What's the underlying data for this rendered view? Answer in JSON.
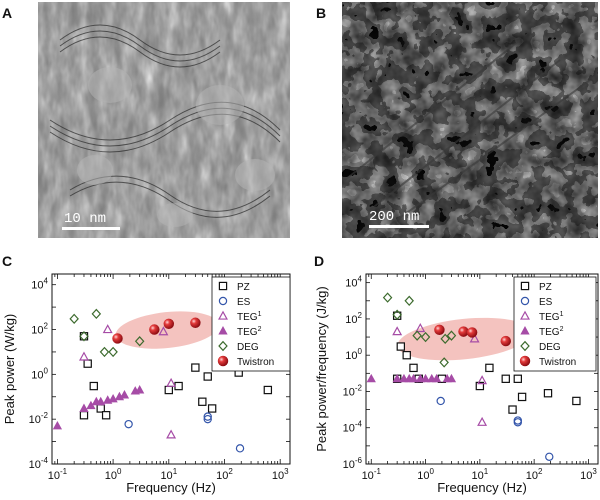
{
  "panels": {
    "a": {
      "letter": "A",
      "scalebar": "10 nm"
    },
    "b": {
      "letter": "B",
      "scalebar": "200 nm"
    },
    "c": {
      "letter": "C"
    },
    "d": {
      "letter": "D"
    }
  },
  "colors": {
    "PZ": "#111111",
    "ES": "#3355aa",
    "TEG1": "#a64ca6",
    "TEG2": "#a64ca6",
    "DEG": "#3d6b2e",
    "Twistron": "#d41f2a",
    "ellipse": "#f2b8b4"
  },
  "legend": [
    {
      "key": "PZ",
      "marker": "open-square",
      "label": "PZ",
      "sup": ""
    },
    {
      "key": "ES",
      "marker": "open-circle",
      "label": "ES",
      "sup": ""
    },
    {
      "key": "TEG1",
      "marker": "open-triangle",
      "label": "TEG",
      "sup": "1"
    },
    {
      "key": "TEG2",
      "marker": "filled-triangle",
      "label": "TEG",
      "sup": "2"
    },
    {
      "key": "DEG",
      "marker": "open-diamond",
      "label": "DEG",
      "sup": ""
    },
    {
      "key": "Twistron",
      "marker": "red-sphere",
      "label": "Twistron",
      "sup": ""
    }
  ],
  "chart_data": [
    {
      "panel": "C",
      "type": "scatter",
      "xlabel": "Frequency (Hz)",
      "ylabel": "Peak power (W/kg)",
      "x_scale": "log",
      "y_scale": "log",
      "xlim": [
        0.08,
        1500
      ],
      "ylim": [
        0.0001,
        30000
      ],
      "x_ticks": [
        {
          "v": 0.1,
          "base": "10",
          "exp": "-1"
        },
        {
          "v": 1,
          "base": "10",
          "exp": "0"
        },
        {
          "v": 10,
          "base": "10",
          "exp": "1"
        },
        {
          "v": 100,
          "base": "10",
          "exp": "2"
        },
        {
          "v": 1000,
          "base": "10",
          "exp": "3"
        }
      ],
      "y_ticks": [
        {
          "v": 0.0001,
          "base": "10",
          "exp": "-4"
        },
        {
          "v": 0.01,
          "base": "10",
          "exp": "-2"
        },
        {
          "v": 1,
          "base": "10",
          "exp": "0"
        },
        {
          "v": 100,
          "base": "10",
          "exp": "2"
        },
        {
          "v": 10000,
          "base": "10",
          "exp": "4"
        }
      ],
      "highlight_region": {
        "x_center": 6,
        "y_center": 100,
        "x_span": [
          1.1,
          80
        ],
        "y_span": [
          15,
          600
        ]
      },
      "series": [
        {
          "key": "PZ",
          "points": [
            [
              0.3,
              50
            ],
            [
              0.35,
              3
            ],
            [
              0.45,
              0.3
            ],
            [
              0.6,
              0.03
            ],
            [
              0.75,
              0.015
            ],
            [
              0.3,
              0.015
            ],
            [
              10,
              0.2
            ],
            [
              15,
              0.3
            ],
            [
              30,
              2
            ],
            [
              50,
              0.8
            ],
            [
              60,
              0.03
            ],
            [
              180,
              1.2
            ],
            [
              600,
              0.2
            ],
            [
              40,
              0.06
            ]
          ]
        },
        {
          "key": "ES",
          "points": [
            [
              1.9,
              0.006
            ],
            [
              50,
              0.01
            ],
            [
              50,
              0.013
            ],
            [
              190,
              0.0005
            ]
          ]
        },
        {
          "key": "TEG1",
          "points": [
            [
              0.3,
              6
            ],
            [
              0.8,
              100
            ],
            [
              8,
              80
            ],
            [
              11,
              0.4
            ],
            [
              11,
              0.002
            ]
          ]
        },
        {
          "key": "TEG2",
          "points": [
            [
              0.1,
              0.005
            ],
            [
              0.3,
              0.03
            ],
            [
              0.4,
              0.04
            ],
            [
              0.5,
              0.06
            ],
            [
              0.6,
              0.06
            ],
            [
              0.8,
              0.07
            ],
            [
              1,
              0.08
            ],
            [
              1.3,
              0.1
            ],
            [
              1.6,
              0.12
            ],
            [
              2.5,
              0.18
            ],
            [
              3,
              0.2
            ]
          ]
        },
        {
          "key": "DEG",
          "points": [
            [
              0.2,
              300
            ],
            [
              0.3,
              50
            ],
            [
              0.5,
              500
            ],
            [
              0.7,
              10
            ],
            [
              1,
              10
            ],
            [
              3,
              30
            ]
          ]
        },
        {
          "key": "Twistron",
          "points": [
            [
              1.2,
              40
            ],
            [
              5.5,
              100
            ],
            [
              10,
              180
            ],
            [
              30,
              200
            ]
          ]
        }
      ]
    },
    {
      "panel": "D",
      "type": "scatter",
      "xlabel": "Frequency (Hz)",
      "ylabel": "Peak power/frequency (J/kg)",
      "x_scale": "log",
      "y_scale": "log",
      "xlim": [
        0.08,
        1500
      ],
      "ylim": [
        1e-06,
        30000
      ],
      "x_ticks": [
        {
          "v": 0.1,
          "base": "10",
          "exp": "-1"
        },
        {
          "v": 1,
          "base": "10",
          "exp": "0"
        },
        {
          "v": 10,
          "base": "10",
          "exp": "1"
        },
        {
          "v": 100,
          "base": "10",
          "exp": "2"
        },
        {
          "v": 1000,
          "base": "10",
          "exp": "3"
        }
      ],
      "y_ticks": [
        {
          "v": 1e-06,
          "base": "10",
          "exp": "-6"
        },
        {
          "v": 0.0001,
          "base": "10",
          "exp": "-4"
        },
        {
          "v": 0.01,
          "base": "10",
          "exp": "-2"
        },
        {
          "v": 1,
          "base": "10",
          "exp": "0"
        },
        {
          "v": 100,
          "base": "10",
          "exp": "2"
        },
        {
          "v": 10000,
          "base": "10",
          "exp": "4"
        }
      ],
      "highlight_region": {
        "x_center": 5,
        "y_center": 8,
        "x_span": [
          0.3,
          90
        ],
        "y_span": [
          0.6,
          100
        ]
      },
      "series": [
        {
          "key": "PZ",
          "points": [
            [
              0.3,
              150
            ],
            [
              0.35,
              3
            ],
            [
              0.45,
              1
            ],
            [
              0.6,
              0.2
            ],
            [
              0.75,
              0.05
            ],
            [
              0.3,
              0.05
            ],
            [
              2,
              0.05
            ],
            [
              10,
              0.02
            ],
            [
              15,
              0.2
            ],
            [
              30,
              0.05
            ],
            [
              50,
              0.05
            ],
            [
              60,
              0.005
            ],
            [
              180,
              0.008
            ],
            [
              600,
              0.003
            ],
            [
              40,
              0.001
            ]
          ]
        },
        {
          "key": "ES",
          "points": [
            [
              1.9,
              0.003
            ],
            [
              50,
              0.0002
            ],
            [
              50,
              0.00025
            ],
            [
              190,
              2.5e-06
            ]
          ]
        },
        {
          "key": "TEG1",
          "points": [
            [
              0.3,
              20
            ],
            [
              0.8,
              30
            ],
            [
              8,
              8
            ],
            [
              11,
              0.04
            ],
            [
              11,
              0.0002
            ]
          ]
        },
        {
          "key": "TEG2",
          "points": [
            [
              0.1,
              0.05
            ],
            [
              0.3,
              0.05
            ],
            [
              0.4,
              0.05
            ],
            [
              0.5,
              0.05
            ],
            [
              0.6,
              0.05
            ],
            [
              0.8,
              0.05
            ],
            [
              1,
              0.05
            ],
            [
              1.3,
              0.05
            ],
            [
              1.6,
              0.05
            ],
            [
              2.5,
              0.05
            ],
            [
              3,
              0.05
            ]
          ]
        },
        {
          "key": "DEG",
          "points": [
            [
              0.2,
              1500
            ],
            [
              0.3,
              170
            ],
            [
              0.5,
              1000
            ],
            [
              0.7,
              12
            ],
            [
              1,
              10
            ],
            [
              2.3,
              8
            ],
            [
              2.2,
              0.4
            ],
            [
              3,
              12
            ]
          ]
        },
        {
          "key": "Twistron",
          "points": [
            [
              1.8,
              25
            ],
            [
              5,
              20
            ],
            [
              7.2,
              18
            ],
            [
              30,
              6
            ]
          ]
        }
      ]
    }
  ]
}
